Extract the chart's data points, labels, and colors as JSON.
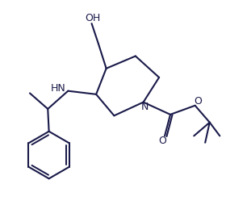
{
  "bg_color": "#ffffff",
  "line_color": "#1a1a4a",
  "line_width": 1.5,
  "fig_width": 2.8,
  "fig_height": 2.54,
  "dpi": 100,
  "xlim": [
    0,
    10
  ],
  "ylim": [
    0,
    9.07
  ]
}
